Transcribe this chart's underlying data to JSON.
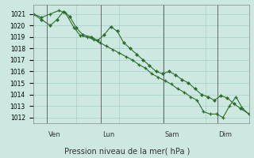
{
  "background_color": "#cce8e0",
  "grid_color": "#aad4c8",
  "line_color": "#2d6e2d",
  "marker_color": "#2d6e2d",
  "ylim": [
    1011.5,
    1021.8
  ],
  "yticks": [
    1012,
    1013,
    1014,
    1015,
    1016,
    1017,
    1018,
    1019,
    1020,
    1021
  ],
  "xlabel": "Pression niveau de la mer( hPa )",
  "day_labels": [
    "Ven",
    "Lun",
    "Sam",
    "Dim"
  ],
  "day_positions": [
    0.07,
    0.32,
    0.61,
    0.86
  ],
  "vline_positions": [
    0.065,
    0.315,
    0.605,
    0.855
  ],
  "line1_x": [
    0.0,
    0.04,
    0.08,
    0.12,
    0.15,
    0.19,
    0.22,
    0.25,
    0.28,
    0.31,
    0.34,
    0.37,
    0.4,
    0.43,
    0.46,
    0.49,
    0.52,
    0.55,
    0.58,
    0.61,
    0.64,
    0.67,
    0.7,
    0.73,
    0.76,
    0.79,
    0.82,
    0.85,
    0.88,
    0.91,
    0.94,
    0.97,
    1.0
  ],
  "line1_y": [
    1021.0,
    1020.7,
    1021.0,
    1021.3,
    1021.1,
    1019.8,
    1019.1,
    1019.0,
    1018.8,
    1018.5,
    1018.2,
    1017.9,
    1017.6,
    1017.3,
    1017.0,
    1016.6,
    1016.3,
    1015.8,
    1015.5,
    1015.2,
    1014.9,
    1014.5,
    1014.2,
    1013.8,
    1013.5,
    1012.5,
    1012.3,
    1012.3,
    1012.0,
    1013.0,
    1013.8,
    1012.8,
    1012.3
  ],
  "line2_x": [
    0.0,
    0.04,
    0.08,
    0.11,
    0.14,
    0.17,
    0.2,
    0.23,
    0.27,
    0.3,
    0.33,
    0.36,
    0.39,
    0.42,
    0.45,
    0.48,
    0.51,
    0.54,
    0.57,
    0.6,
    0.63,
    0.66,
    0.69,
    0.72,
    0.75,
    0.78,
    0.81,
    0.84,
    0.87,
    0.9,
    0.93,
    0.96,
    1.0
  ],
  "line2_y": [
    1021.0,
    1020.5,
    1020.0,
    1020.5,
    1021.2,
    1020.8,
    1019.8,
    1019.2,
    1019.0,
    1018.7,
    1019.2,
    1019.9,
    1019.5,
    1018.5,
    1018.0,
    1017.5,
    1017.0,
    1016.5,
    1016.0,
    1015.8,
    1016.0,
    1015.7,
    1015.3,
    1015.0,
    1014.5,
    1014.0,
    1013.8,
    1013.5,
    1013.9,
    1013.7,
    1013.2,
    1012.8,
    1012.3
  ]
}
